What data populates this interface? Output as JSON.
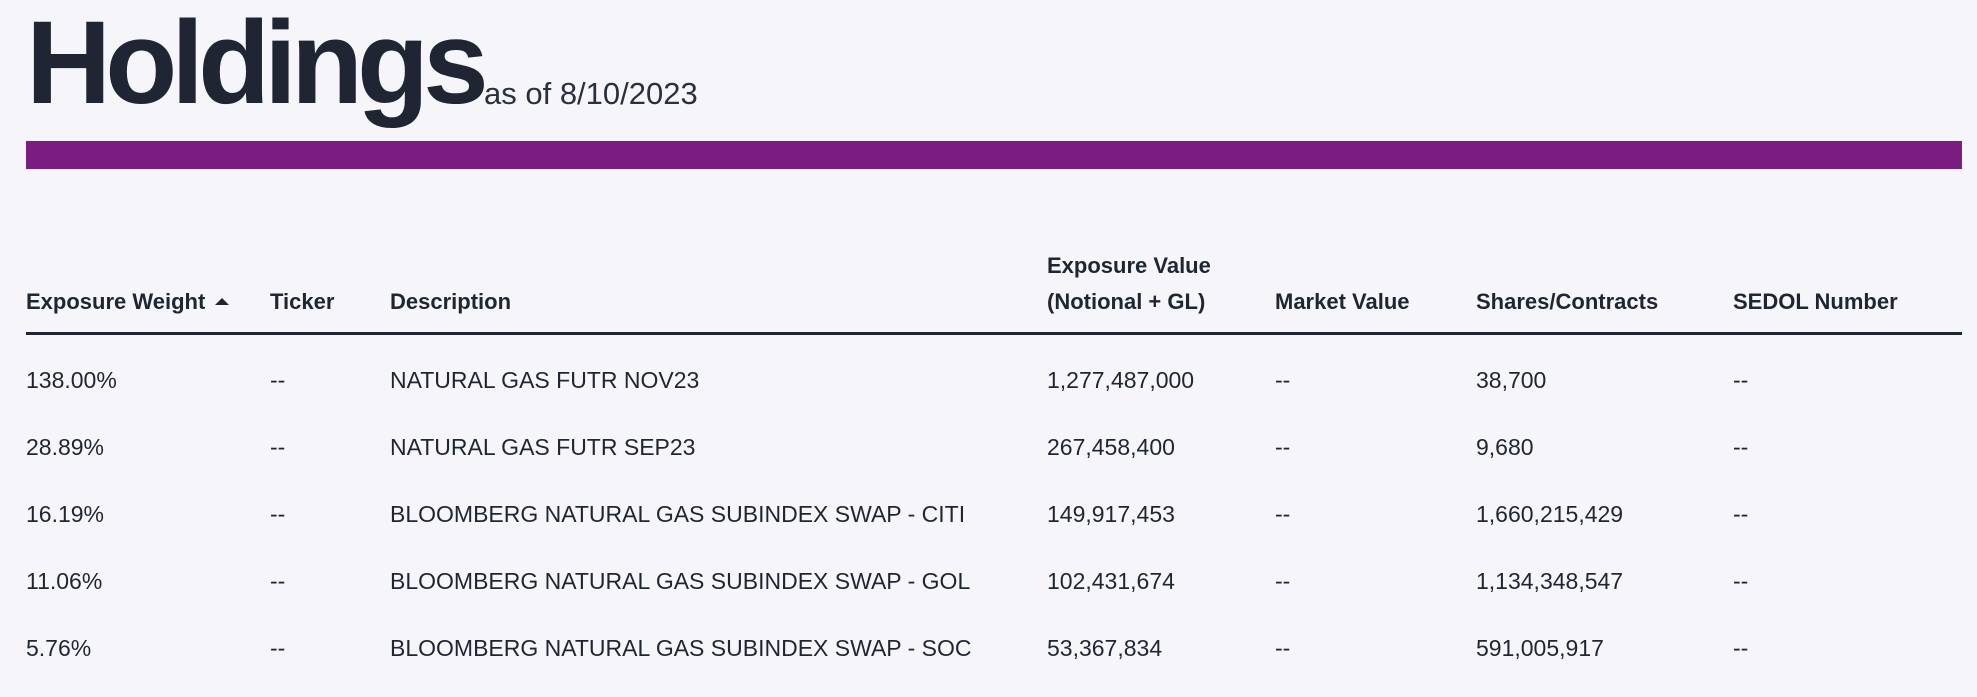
{
  "header": {
    "title": "Holdings",
    "as_of": "as of 8/10/2023"
  },
  "colors": {
    "accent": "#7a1c82",
    "text": "#1f2533",
    "background": "#f6f6fa"
  },
  "table": {
    "columns": [
      {
        "label": "Exposure Weight",
        "sort": "ascending"
      },
      {
        "label": "Ticker"
      },
      {
        "label": "Description"
      },
      {
        "label_line1": "Exposure Value",
        "label_line2": "(Notional + GL)"
      },
      {
        "label": "Market Value"
      },
      {
        "label": "Shares/Contracts"
      },
      {
        "label": "SEDOL Number"
      }
    ],
    "rows": [
      {
        "weight": "138.00%",
        "ticker": "--",
        "description": "NATURAL GAS FUTR NOV23",
        "exposure_value": "1,277,487,000",
        "market_value": "--",
        "shares": "38,700",
        "sedol": "--"
      },
      {
        "weight": "28.89%",
        "ticker": "--",
        "description": "NATURAL GAS FUTR SEP23",
        "exposure_value": "267,458,400",
        "market_value": "--",
        "shares": "9,680",
        "sedol": "--"
      },
      {
        "weight": "16.19%",
        "ticker": "--",
        "description": "BLOOMBERG NATURAL GAS SUBINDEX SWAP - CITI",
        "exposure_value": "149,917,453",
        "market_value": "--",
        "shares": "1,660,215,429",
        "sedol": "--"
      },
      {
        "weight": "11.06%",
        "ticker": "--",
        "description": "BLOOMBERG NATURAL GAS SUBINDEX SWAP - GOL",
        "exposure_value": "102,431,674",
        "market_value": "--",
        "shares": "1,134,348,547",
        "sedol": "--"
      },
      {
        "weight": "5.76%",
        "ticker": "--",
        "description": "BLOOMBERG NATURAL GAS SUBINDEX SWAP - SOC",
        "exposure_value": "53,367,834",
        "market_value": "--",
        "shares": "591,005,917",
        "sedol": "--"
      }
    ]
  }
}
